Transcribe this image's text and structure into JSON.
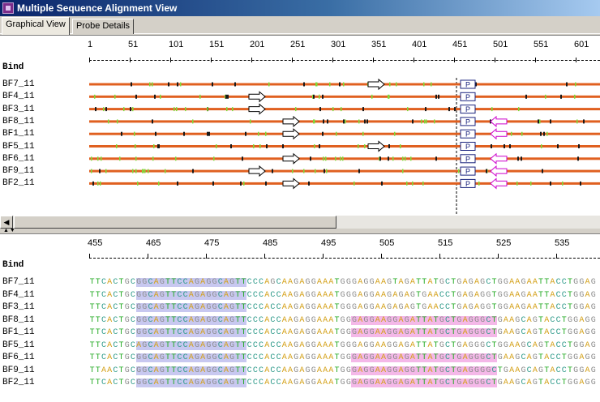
{
  "window": {
    "title": "Multiple Sequence Alignment View"
  },
  "tabs": [
    {
      "label": "Graphical View",
      "active": true
    },
    {
      "label": "Probe Details",
      "active": false
    }
  ],
  "overview": {
    "ruler": [
      "1",
      "51",
      "101",
      "151",
      "201",
      "251",
      "301",
      "351",
      "401",
      "451",
      "501",
      "551",
      "601"
    ],
    "bind_label": "Bind",
    "probe_marker": "P",
    "sequences": [
      {
        "name": "BF7_11",
        "arrows": [
          {
            "pos": 345,
            "dir": "right"
          }
        ],
        "back_arrow": false
      },
      {
        "name": "BF4_11",
        "arrows": [
          {
            "pos": 198,
            "dir": "right"
          }
        ],
        "back_arrow": false
      },
      {
        "name": "BF3_11",
        "arrows": [
          {
            "pos": 198,
            "dir": "right"
          }
        ],
        "back_arrow": false
      },
      {
        "name": "BF8_11",
        "arrows": [
          {
            "pos": 240,
            "dir": "right"
          }
        ],
        "back_arrow": true
      },
      {
        "name": "BF1_11",
        "arrows": [
          {
            "pos": 240,
            "dir": "right"
          }
        ],
        "back_arrow": true
      },
      {
        "name": "BF5_11",
        "arrows": [
          {
            "pos": 345,
            "dir": "right"
          }
        ],
        "back_arrow": false
      },
      {
        "name": "BF6_11",
        "arrows": [
          {
            "pos": 240,
            "dir": "right"
          }
        ],
        "back_arrow": true
      },
      {
        "name": "BF9_11",
        "arrows": [
          {
            "pos": 198,
            "dir": "right"
          }
        ],
        "back_arrow": true
      },
      {
        "name": "BF2_11",
        "arrows": [
          {
            "pos": 240,
            "dir": "right"
          }
        ],
        "back_arrow": true
      }
    ],
    "colors": {
      "track": "#e06020",
      "forward_arrow": "#000000",
      "reverse_arrow": "#cc00cc",
      "probe_box": "#1a237e"
    }
  },
  "detail": {
    "ruler": [
      "455",
      "465",
      "475",
      "485",
      "495",
      "505",
      "515",
      "525",
      "535"
    ],
    "bind_label": "Bind",
    "sequences": [
      {
        "name": "BF7_11",
        "seq": "TTCACTGCGGCAGTTCCAGAGGCAGTTCCCAGCAAGAGGAAATGGGAGGAAGTAGATTATGCTGAGAGCTGGAAGAATTACCTGGAGGCA"
      },
      {
        "name": "BF4_11",
        "seq": "TTCACTGCGGCAGTTCCAGAGGCAGTTCCCACCAAGAGGAAATGGGAGGAAGAGAGTGAACCTGAGAGGTGGAAGAATTACCTGGAGGCA"
      },
      {
        "name": "BF3_11",
        "seq": "TTCACTGCGGCAGTTCCAGAGGCAGTTCCCACCAAGAGGAAATGGGAGGAAGAGAGTGAACCTGAGAGGTGGAAGAATTACCTGGAGGAA"
      },
      {
        "name": "BF8_11",
        "seq": "TTCACTGCGGCAGTTCCAGAGGCAGTTCCCACCAAGAGGAAATGGGAGGAAGGAGATTATGCTGAGGGCTGAAGCAGTACCTGGAGGAA"
      },
      {
        "name": "BF1_11",
        "seq": "TTCACTGCGGCAGTTCCAGAGGCAGTTCCCACCAAGAGGAAATGGGAGGAAGGAGATTATGCTGAGGGCTGAAGCAGTACCTGGAGGAA"
      },
      {
        "name": "BF5_11",
        "seq": "TTCACTGCAGCAGTTCCAGAGGCAGTTCCCACCAAGAGGAAATGGGAGGAAGGAGATTATGCTGAGGGCTGGAAGCAGTACCTGGAGGAA"
      },
      {
        "name": "BF6_11",
        "seq": "TTCACTGCGGCAGTTCCAGAGGCAGTTCCCACCAAGAGGAAATGGGAGGAAGGAGATTATGCTGAGGGCTGAAGCAGTACCTGGAGGAA"
      },
      {
        "name": "BF9_11",
        "seq": "TTAACTGCGGCAGTTCCAGAGGCAGTTCCCACCAAGAGGAAATGGGAGGAAGGAGGTTATGCTGAGGGGCTGAAGCAGTACCTGGAGGAA"
      },
      {
        "name": "BF2_11",
        "seq": "TTCACTGCGGCAGTTCCAGAGGCAGTTCCCACCAAGAGGAAATGGGAGGAAGGAGATTATGCTGAGGGCTGAAGCAGTACCTGGAGGAA"
      }
    ],
    "base_colors": {
      "A": "#d4a017",
      "C": "#2e9a8a",
      "G": "#8c8c8c",
      "T": "#22aa22"
    },
    "highlight_colors": {
      "primer": "#c8c8f0",
      "probe": "#f4b8e8"
    }
  }
}
